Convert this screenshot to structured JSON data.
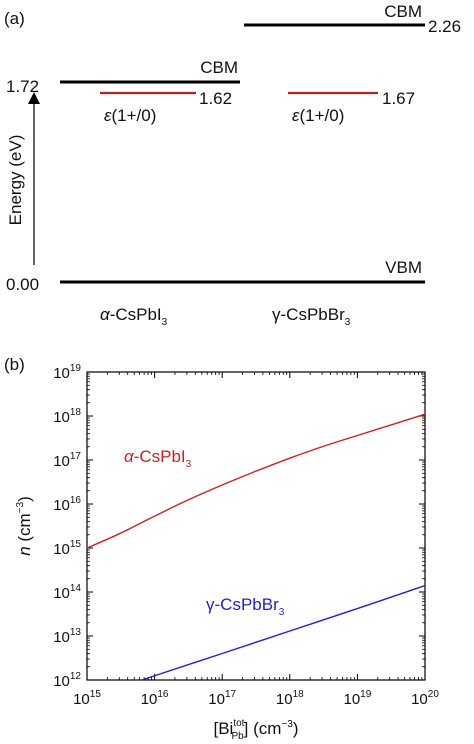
{
  "panel_a": {
    "label": "(a)",
    "ylabel": "Energy (eV)",
    "y_ticks": [
      "1.72",
      "0.00"
    ],
    "materials": [
      {
        "name": "α-CsPbI",
        "name_sub": "3",
        "cbm_label": "CBM",
        "cbm_value": 1.72,
        "level_label_pre": "ε",
        "level_label_post": "(1+/0)",
        "level_value": 1.62,
        "level_value_text": "1.62"
      },
      {
        "name": "γ-CsPbBr",
        "name_sub": "3",
        "cbm_label": "CBM",
        "cbm_value": 2.26,
        "cbm_value_text": "2.26",
        "level_label_pre": "ε",
        "level_label_post": "(1+/0)",
        "level_value": 1.67,
        "level_value_text": "1.67"
      }
    ],
    "vbm_label": "VBM",
    "vbm_value": 0.0,
    "colors": {
      "cbm": "#000000",
      "level": "#b22222"
    }
  },
  "chart_data": {
    "type": "line",
    "panel_label": "(b)",
    "xscale": "log",
    "yscale": "log",
    "xlim": [
      1000000000000000.0,
      1e+20
    ],
    "ylim": [
      1000000000000.0,
      1e+19
    ],
    "x_tick_exponents": [
      15,
      16,
      17,
      18,
      19,
      20
    ],
    "y_tick_exponents": [
      12,
      13,
      14,
      15,
      16,
      17,
      18,
      19
    ],
    "tick_base": "10",
    "ylabel_pre": "n",
    "ylabel_post": " (cm",
    "ylabel_sup": "−3",
    "ylabel_end": ")",
    "xlabel_pre": "[Bi",
    "xlabel_sup": "tot",
    "xlabel_sub": "Pb",
    "xlabel_post": "] (cm",
    "xlabel_sup2": "−3",
    "xlabel_end": ")",
    "series": [
      {
        "name": "α-CsPbI",
        "name_sub": "3",
        "color": "#cc2222",
        "x": [
          1000000000000000.0,
          3000000000000000.0,
          1e+16,
          3e+16,
          1e+17,
          3e+17,
          1e+18,
          3e+18,
          1e+19,
          1e+20
        ],
        "y": [
          1000000000000000.0,
          2100000000000000.0,
          5300000000000000.0,
          1.2e+16,
          2.7e+16,
          5.4e+16,
          1.1e+17,
          2e+17,
          3.6e+17,
          1.1e+18
        ]
      },
      {
        "name": "γ-CsPbBr",
        "name_sub": "3",
        "color": "#2222cc",
        "x": [
          6500000000000000.0,
          1e+16,
          1e+17,
          1e+18,
          1e+19,
          1e+20
        ],
        "y": [
          1000000000000.0,
          1250000000000.0,
          4000000000000.0,
          13000000000000.0,
          42000000000000.0,
          140000000000000.0
        ]
      }
    ]
  }
}
